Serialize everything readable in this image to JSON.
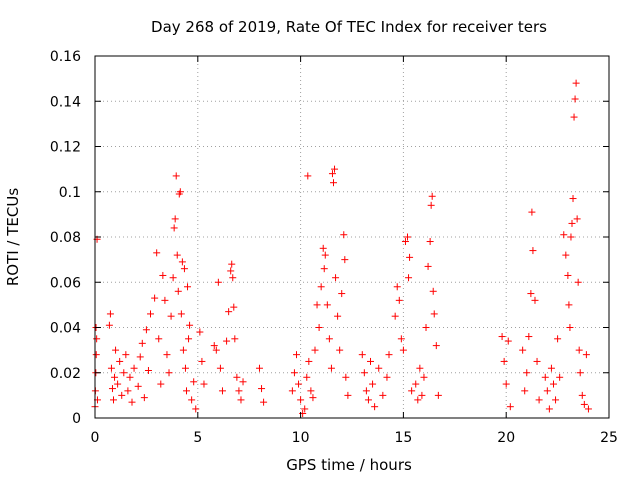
{
  "chart_data": {
    "type": "scatter",
    "title": "Day 268 of 2019, Rate Of TEC Index for receiver ters",
    "xlabel": "GPS time / hours",
    "ylabel": "ROTI / TECUs",
    "xlim": [
      0,
      25
    ],
    "ylim": [
      0,
      0.16
    ],
    "x_ticks": [
      0,
      5,
      10,
      15,
      20,
      25
    ],
    "x_tick_labels": [
      "0",
      "5",
      "10",
      "15",
      "20",
      "25"
    ],
    "y_ticks": [
      0,
      0.02,
      0.04,
      0.06,
      0.08,
      0.1,
      0.12,
      0.14,
      0.16
    ],
    "y_tick_labels": [
      "0",
      "0.02",
      "0.04",
      "0.06",
      "0.08",
      "0.1",
      "0.12",
      "0.14",
      "0.16"
    ],
    "grid": true,
    "marker": "+",
    "series": [
      {
        "name": "ROTI",
        "color": "#ff0000",
        "points": [
          [
            0.0,
            0.005
          ],
          [
            0.02,
            0.012
          ],
          [
            0.04,
            0.02
          ],
          [
            0.06,
            0.028
          ],
          [
            0.08,
            0.035
          ],
          [
            0.1,
            0.079
          ],
          [
            0.05,
            0.04
          ],
          [
            0.12,
            0.008
          ],
          [
            0.7,
            0.041
          ],
          [
            0.75,
            0.046
          ],
          [
            0.8,
            0.022
          ],
          [
            0.85,
            0.013
          ],
          [
            0.9,
            0.008
          ],
          [
            0.95,
            0.018
          ],
          [
            1.0,
            0.03
          ],
          [
            1.1,
            0.015
          ],
          [
            1.2,
            0.025
          ],
          [
            1.3,
            0.01
          ],
          [
            1.4,
            0.02
          ],
          [
            1.5,
            0.028
          ],
          [
            1.6,
            0.012
          ],
          [
            1.7,
            0.018
          ],
          [
            1.8,
            0.007
          ],
          [
            1.9,
            0.022
          ],
          [
            2.1,
            0.014
          ],
          [
            2.2,
            0.027
          ],
          [
            2.3,
            0.033
          ],
          [
            2.4,
            0.009
          ],
          [
            2.5,
            0.039
          ],
          [
            2.6,
            0.021
          ],
          [
            2.7,
            0.046
          ],
          [
            2.9,
            0.053
          ],
          [
            3.0,
            0.073
          ],
          [
            3.1,
            0.035
          ],
          [
            3.2,
            0.015
          ],
          [
            3.3,
            0.063
          ],
          [
            3.4,
            0.052
          ],
          [
            3.5,
            0.028
          ],
          [
            3.6,
            0.02
          ],
          [
            3.7,
            0.045
          ],
          [
            3.8,
            0.062
          ],
          [
            3.85,
            0.084
          ],
          [
            3.9,
            0.088
          ],
          [
            3.95,
            0.107
          ],
          [
            4.0,
            0.072
          ],
          [
            4.05,
            0.056
          ],
          [
            4.1,
            0.099
          ],
          [
            4.15,
            0.1
          ],
          [
            4.2,
            0.046
          ],
          [
            4.25,
            0.069
          ],
          [
            4.3,
            0.03
          ],
          [
            4.35,
            0.066
          ],
          [
            4.4,
            0.022
          ],
          [
            4.45,
            0.012
          ],
          [
            4.5,
            0.058
          ],
          [
            4.55,
            0.035
          ],
          [
            4.6,
            0.041
          ],
          [
            4.7,
            0.008
          ],
          [
            4.8,
            0.016
          ],
          [
            4.9,
            0.004
          ],
          [
            5.1,
            0.038
          ],
          [
            5.2,
            0.025
          ],
          [
            5.3,
            0.015
          ],
          [
            5.8,
            0.032
          ],
          [
            5.9,
            0.03
          ],
          [
            6.0,
            0.06
          ],
          [
            6.1,
            0.022
          ],
          [
            6.2,
            0.012
          ],
          [
            6.4,
            0.034
          ],
          [
            6.5,
            0.047
          ],
          [
            6.6,
            0.065
          ],
          [
            6.65,
            0.068
          ],
          [
            6.7,
            0.062
          ],
          [
            6.75,
            0.049
          ],
          [
            6.8,
            0.035
          ],
          [
            6.9,
            0.018
          ],
          [
            7.0,
            0.012
          ],
          [
            7.1,
            0.008
          ],
          [
            7.2,
            0.016
          ],
          [
            8.0,
            0.022
          ],
          [
            8.1,
            0.013
          ],
          [
            8.2,
            0.007
          ],
          [
            9.6,
            0.012
          ],
          [
            9.7,
            0.02
          ],
          [
            9.8,
            0.028
          ],
          [
            9.9,
            0.015
          ],
          [
            10.0,
            0.008
          ],
          [
            10.1,
            0.002
          ],
          [
            10.2,
            0.004
          ],
          [
            10.3,
            0.018
          ],
          [
            10.35,
            0.107
          ],
          [
            10.4,
            0.025
          ],
          [
            10.5,
            0.012
          ],
          [
            10.6,
            0.009
          ],
          [
            10.7,
            0.03
          ],
          [
            10.8,
            0.05
          ],
          [
            10.9,
            0.04
          ],
          [
            11.0,
            0.058
          ],
          [
            11.1,
            0.075
          ],
          [
            11.15,
            0.066
          ],
          [
            11.2,
            0.072
          ],
          [
            11.3,
            0.05
          ],
          [
            11.4,
            0.035
          ],
          [
            11.5,
            0.022
          ],
          [
            11.55,
            0.108
          ],
          [
            11.6,
            0.104
          ],
          [
            11.65,
            0.11
          ],
          [
            11.7,
            0.062
          ],
          [
            11.8,
            0.045
          ],
          [
            11.9,
            0.03
          ],
          [
            12.0,
            0.055
          ],
          [
            12.1,
            0.081
          ],
          [
            12.15,
            0.07
          ],
          [
            12.2,
            0.018
          ],
          [
            12.3,
            0.01
          ],
          [
            13.0,
            0.028
          ],
          [
            13.1,
            0.02
          ],
          [
            13.2,
            0.012
          ],
          [
            13.3,
            0.008
          ],
          [
            13.4,
            0.025
          ],
          [
            13.5,
            0.015
          ],
          [
            13.6,
            0.005
          ],
          [
            13.8,
            0.022
          ],
          [
            14.0,
            0.01
          ],
          [
            14.2,
            0.018
          ],
          [
            14.3,
            0.028
          ],
          [
            14.6,
            0.045
          ],
          [
            14.7,
            0.058
          ],
          [
            14.8,
            0.052
          ],
          [
            14.9,
            0.035
          ],
          [
            15.0,
            0.03
          ],
          [
            15.1,
            0.078
          ],
          [
            15.2,
            0.08
          ],
          [
            15.25,
            0.062
          ],
          [
            15.3,
            0.071
          ],
          [
            15.4,
            0.012
          ],
          [
            15.6,
            0.015
          ],
          [
            15.7,
            0.008
          ],
          [
            15.8,
            0.022
          ],
          [
            15.9,
            0.01
          ],
          [
            16.0,
            0.018
          ],
          [
            16.1,
            0.04
          ],
          [
            16.2,
            0.067
          ],
          [
            16.3,
            0.078
          ],
          [
            16.35,
            0.094
          ],
          [
            16.4,
            0.098
          ],
          [
            16.45,
            0.056
          ],
          [
            16.5,
            0.046
          ],
          [
            16.6,
            0.032
          ],
          [
            16.7,
            0.01
          ],
          [
            19.8,
            0.036
          ],
          [
            19.9,
            0.025
          ],
          [
            20.0,
            0.015
          ],
          [
            20.1,
            0.034
          ],
          [
            20.2,
            0.005
          ],
          [
            20.8,
            0.03
          ],
          [
            20.9,
            0.012
          ],
          [
            21.0,
            0.02
          ],
          [
            21.1,
            0.036
          ],
          [
            21.2,
            0.055
          ],
          [
            21.25,
            0.091
          ],
          [
            21.3,
            0.074
          ],
          [
            21.4,
            0.052
          ],
          [
            21.5,
            0.025
          ],
          [
            21.6,
            0.008
          ],
          [
            21.9,
            0.018
          ],
          [
            22.0,
            0.012
          ],
          [
            22.1,
            0.004
          ],
          [
            22.2,
            0.022
          ],
          [
            22.3,
            0.015
          ],
          [
            22.4,
            0.008
          ],
          [
            22.5,
            0.035
          ],
          [
            22.6,
            0.018
          ],
          [
            22.8,
            0.081
          ],
          [
            22.9,
            0.072
          ],
          [
            23.0,
            0.063
          ],
          [
            23.05,
            0.05
          ],
          [
            23.1,
            0.04
          ],
          [
            23.15,
            0.08
          ],
          [
            23.2,
            0.086
          ],
          [
            23.25,
            0.097
          ],
          [
            23.3,
            0.133
          ],
          [
            23.35,
            0.141
          ],
          [
            23.4,
            0.148
          ],
          [
            23.45,
            0.088
          ],
          [
            23.5,
            0.06
          ],
          [
            23.55,
            0.03
          ],
          [
            23.6,
            0.02
          ],
          [
            23.7,
            0.01
          ],
          [
            23.8,
            0.006
          ],
          [
            23.9,
            0.028
          ],
          [
            24.0,
            0.004
          ]
        ]
      }
    ]
  }
}
